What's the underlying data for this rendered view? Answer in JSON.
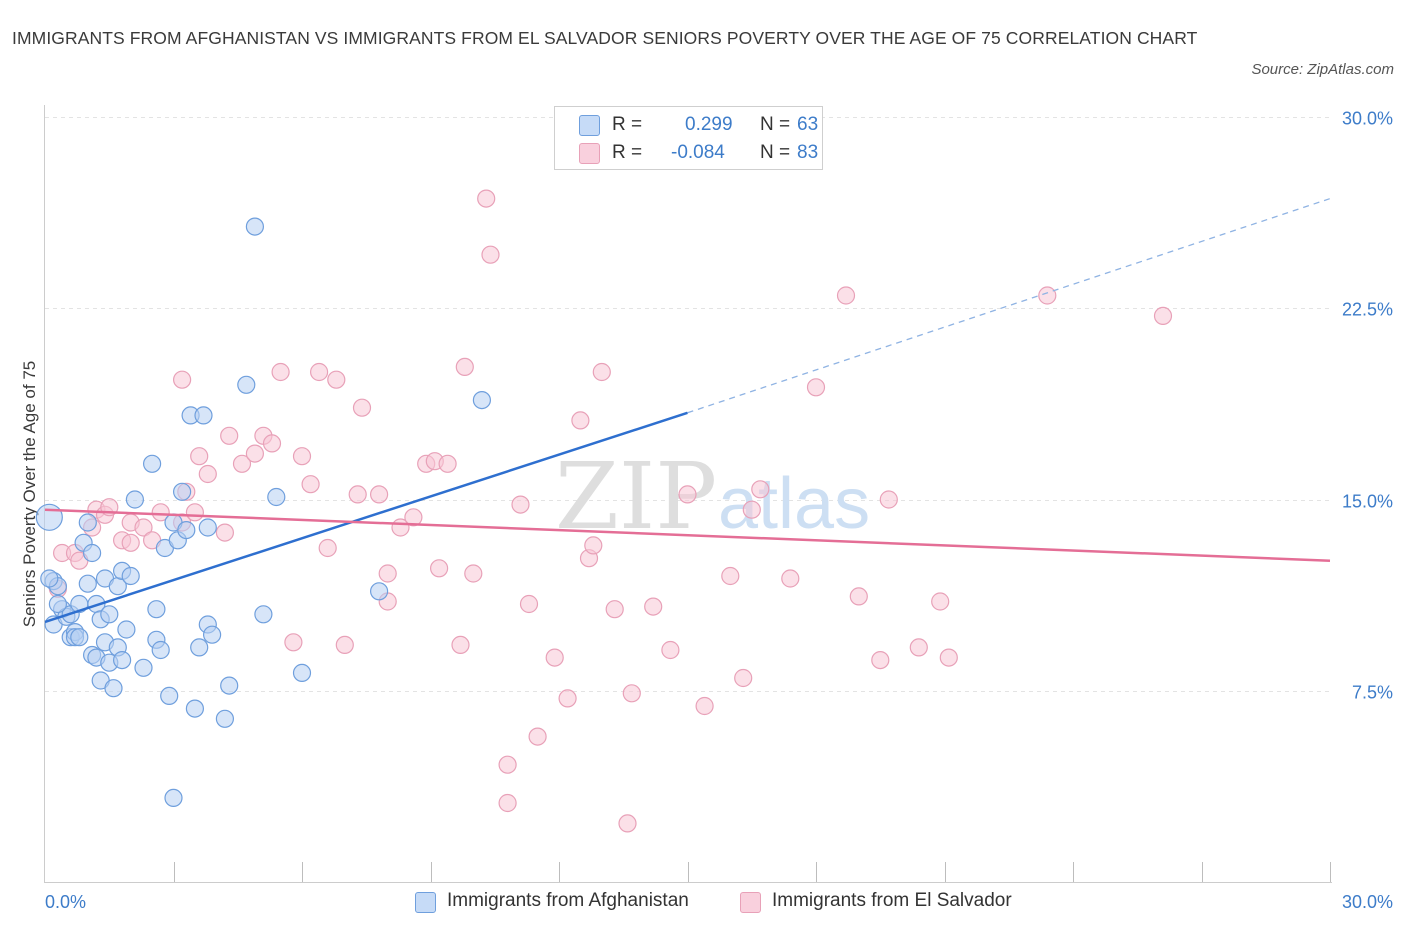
{
  "header": {
    "title": "IMMIGRANTS FROM AFGHANISTAN VS IMMIGRANTS FROM EL SALVADOR SENIORS POVERTY OVER THE AGE OF 75 CORRELATION CHART",
    "source": "Source: ZipAtlas.com"
  },
  "legend": {
    "r_label": "R =",
    "n_label": "N =",
    "afghanistan": {
      "r": "0.299",
      "n": "63"
    },
    "el_salvador": {
      "r": "-0.084",
      "n": "83"
    }
  },
  "colors": {
    "afghanistan_fill": "#b6d0f3",
    "afghanistan_stroke": "#6f9fdd",
    "afghanistan_line": "#2e6fcf",
    "el_salvador_fill": "#f7c6d5",
    "el_salvador_stroke": "#e8a1b8",
    "el_salvador_line": "#e46e96",
    "axis_label": "#3d7cc9",
    "watermark": "#dcdcdc"
  },
  "watermark": {
    "zip": "ZIP",
    "atlas": "atlas"
  },
  "chart_data": {
    "type": "scatter",
    "title": "IMMIGRANTS FROM AFGHANISTAN VS IMMIGRANTS FROM EL SALVADOR SENIORS POVERTY OVER THE AGE OF 75 CORRELATION CHART",
    "xlabel": "",
    "ylabel": "Seniors Poverty Over the Age of 75",
    "xlim": [
      0,
      30
    ],
    "ylim": [
      0,
      30
    ],
    "x_tick_labels": [
      "0.0%",
      "30.0%"
    ],
    "y_ticks": [
      7.5,
      15.0,
      22.5,
      30.0
    ],
    "y_tick_labels": [
      "7.5%",
      "15.0%",
      "22.5%",
      "30.0%"
    ],
    "grid": true,
    "legend_position": "top-center",
    "series": [
      {
        "name": "Immigrants from Afghanistan",
        "trend": {
          "x": [
            0,
            15
          ],
          "y": [
            10.2,
            18.4
          ],
          "dashed_extension": {
            "x": [
              15,
              30
            ],
            "y": [
              18.4,
              26.8
            ]
          }
        },
        "points": [
          [
            0.1,
            14.3
          ],
          [
            0.2,
            11.8
          ],
          [
            0.3,
            11.6
          ],
          [
            0.2,
            10.1
          ],
          [
            0.4,
            10.7
          ],
          [
            0.5,
            10.4
          ],
          [
            0.6,
            10.5
          ],
          [
            0.6,
            9.6
          ],
          [
            0.7,
            9.8
          ],
          [
            0.7,
            9.6
          ],
          [
            0.8,
            9.6
          ],
          [
            0.8,
            10.9
          ],
          [
            0.9,
            13.3
          ],
          [
            1.0,
            14.1
          ],
          [
            1.0,
            11.7
          ],
          [
            1.1,
            12.9
          ],
          [
            1.1,
            8.9
          ],
          [
            1.2,
            8.8
          ],
          [
            1.2,
            10.9
          ],
          [
            1.3,
            7.9
          ],
          [
            1.3,
            10.3
          ],
          [
            1.4,
            9.4
          ],
          [
            1.4,
            11.9
          ],
          [
            1.5,
            8.6
          ],
          [
            1.5,
            10.5
          ],
          [
            1.6,
            7.6
          ],
          [
            1.7,
            9.2
          ],
          [
            1.7,
            11.6
          ],
          [
            1.8,
            12.2
          ],
          [
            1.8,
            8.7
          ],
          [
            1.9,
            9.9
          ],
          [
            2.0,
            12.0
          ],
          [
            2.1,
            15.0
          ],
          [
            2.3,
            8.4
          ],
          [
            2.5,
            16.4
          ],
          [
            2.6,
            9.5
          ],
          [
            2.6,
            10.7
          ],
          [
            2.7,
            9.1
          ],
          [
            2.8,
            13.1
          ],
          [
            2.9,
            7.3
          ],
          [
            3.0,
            14.1
          ],
          [
            3.1,
            13.4
          ],
          [
            3.0,
            3.3
          ],
          [
            3.2,
            15.3
          ],
          [
            3.3,
            13.8
          ],
          [
            3.4,
            18.3
          ],
          [
            3.5,
            6.8
          ],
          [
            3.6,
            9.2
          ],
          [
            3.7,
            18.3
          ],
          [
            3.8,
            10.1
          ],
          [
            3.8,
            13.9
          ],
          [
            3.9,
            9.7
          ],
          [
            4.2,
            6.4
          ],
          [
            4.3,
            7.7
          ],
          [
            4.7,
            19.5
          ],
          [
            4.9,
            25.7
          ],
          [
            5.1,
            10.5
          ],
          [
            5.4,
            15.1
          ],
          [
            6.0,
            8.2
          ],
          [
            7.8,
            11.4
          ],
          [
            10.2,
            18.9
          ],
          [
            0.3,
            10.9
          ],
          [
            0.1,
            11.9
          ]
        ]
      },
      {
        "name": "Immigrants from El Salvador",
        "trend": {
          "x": [
            0,
            30
          ],
          "y": [
            14.6,
            12.6
          ]
        },
        "points": [
          [
            0.3,
            11.5
          ],
          [
            0.4,
            12.9
          ],
          [
            0.7,
            12.9
          ],
          [
            0.8,
            12.6
          ],
          [
            1.1,
            13.9
          ],
          [
            1.2,
            14.6
          ],
          [
            1.4,
            14.4
          ],
          [
            1.5,
            14.7
          ],
          [
            1.8,
            13.4
          ],
          [
            2.0,
            14.1
          ],
          [
            2.0,
            13.3
          ],
          [
            2.3,
            13.9
          ],
          [
            2.5,
            13.4
          ],
          [
            2.7,
            14.5
          ],
          [
            3.2,
            14.1
          ],
          [
            3.3,
            15.3
          ],
          [
            3.2,
            19.7
          ],
          [
            3.5,
            14.5
          ],
          [
            3.6,
            16.7
          ],
          [
            3.8,
            16.0
          ],
          [
            4.2,
            13.7
          ],
          [
            4.3,
            17.5
          ],
          [
            4.6,
            16.4
          ],
          [
            4.9,
            16.8
          ],
          [
            5.1,
            17.5
          ],
          [
            5.3,
            17.2
          ],
          [
            5.5,
            20.0
          ],
          [
            5.8,
            9.4
          ],
          [
            6.0,
            16.7
          ],
          [
            6.2,
            15.6
          ],
          [
            6.4,
            20.0
          ],
          [
            6.6,
            13.1
          ],
          [
            6.8,
            19.7
          ],
          [
            7.0,
            9.3
          ],
          [
            7.3,
            15.2
          ],
          [
            7.4,
            18.6
          ],
          [
            7.8,
            15.2
          ],
          [
            8.0,
            11.0
          ],
          [
            8.0,
            12.1
          ],
          [
            8.3,
            13.9
          ],
          [
            8.6,
            14.3
          ],
          [
            8.9,
            16.4
          ],
          [
            9.1,
            16.5
          ],
          [
            9.2,
            12.3
          ],
          [
            9.4,
            16.4
          ],
          [
            9.7,
            9.3
          ],
          [
            9.8,
            20.2
          ],
          [
            10.0,
            12.1
          ],
          [
            10.3,
            26.8
          ],
          [
            10.4,
            24.6
          ],
          [
            10.8,
            4.6
          ],
          [
            10.8,
            3.1
          ],
          [
            11.1,
            14.8
          ],
          [
            11.3,
            10.9
          ],
          [
            11.5,
            5.7
          ],
          [
            11.9,
            8.8
          ],
          [
            12.2,
            7.2
          ],
          [
            12.5,
            18.1
          ],
          [
            12.7,
            12.7
          ],
          [
            12.8,
            13.2
          ],
          [
            13.0,
            20.0
          ],
          [
            13.3,
            10.7
          ],
          [
            13.6,
            2.3
          ],
          [
            13.7,
            7.4
          ],
          [
            14.2,
            10.8
          ],
          [
            14.6,
            9.1
          ],
          [
            15.0,
            15.2
          ],
          [
            15.4,
            6.9
          ],
          [
            16.0,
            12.0
          ],
          [
            16.3,
            8.0
          ],
          [
            16.5,
            14.6
          ],
          [
            16.7,
            15.4
          ],
          [
            17.4,
            11.9
          ],
          [
            18.0,
            19.4
          ],
          [
            18.7,
            23.0
          ],
          [
            19.0,
            11.2
          ],
          [
            19.5,
            8.7
          ],
          [
            19.7,
            15.0
          ],
          [
            20.4,
            9.2
          ],
          [
            20.9,
            11.0
          ],
          [
            21.1,
            8.8
          ],
          [
            23.4,
            23.0
          ],
          [
            26.1,
            22.2
          ]
        ]
      }
    ]
  },
  "bottom_legend": {
    "afghanistan": "Immigrants from Afghanistan",
    "el_salvador": "Immigrants from El Salvador"
  }
}
